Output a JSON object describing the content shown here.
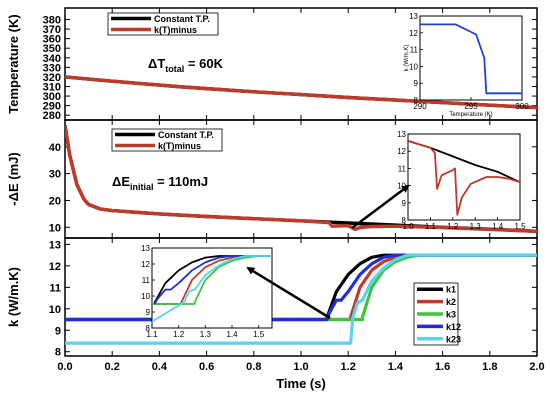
{
  "chart_data": {
    "type": "line",
    "shared_x": {
      "label": "Time (s)",
      "lim": [
        0.0,
        2.0
      ],
      "ticks": [
        0.0,
        0.2,
        0.4,
        0.6,
        0.8,
        1.0,
        1.2,
        1.4,
        1.6,
        1.8,
        2.0
      ],
      "tick_labels": [
        "0.0",
        "0.2",
        "0.4",
        "0.6",
        "0.8",
        "1.0",
        "1.2",
        "1.4",
        "1.6",
        "1.8",
        "2.0"
      ]
    },
    "panels": [
      {
        "id": "temperature",
        "ylabel": "Temperature (K)",
        "ylim": [
          275,
          392
        ],
        "yticks": [
          280,
          290,
          300,
          310,
          320,
          330,
          340,
          350,
          360,
          370,
          380
        ],
        "legend": [
          "Constant T.P.",
          "k(T)minus"
        ],
        "legend_placement": "top-left",
        "annotation_main": "ΔT",
        "annotation_sub": "total",
        "annotation_tail": " = 60K",
        "series": [
          {
            "name": "Constant T.P.",
            "color": "#000000",
            "x": [
              0,
              0.2,
              0.5,
              0.8,
              1.0,
              1.2,
              1.5,
              1.8,
              2.0
            ],
            "y": [
              320,
              315.5,
              309.5,
              304.5,
              301.5,
              298.5,
              294.5,
              290.5,
              288
            ]
          },
          {
            "name": "k(T)minus",
            "color": "#c0392b",
            "x": [
              0,
              0.2,
              0.5,
              0.8,
              1.0,
              1.2,
              1.5,
              1.8,
              2.0
            ],
            "y": [
              320,
              315.5,
              309.5,
              304.5,
              301.5,
              298.5,
              294.5,
              290.5,
              288
            ]
          }
        ],
        "inset": {
          "xlabel": "Temperature (K)",
          "ylabel": "k (W/m.K)",
          "xlim": [
            290,
            300
          ],
          "ylim": [
            8,
            13
          ],
          "xticks": [
            290,
            295,
            300
          ],
          "yticks": [
            8,
            9,
            10,
            11,
            12,
            13
          ],
          "series": [
            {
              "name": "",
              "color": "#1f3fd8",
              "x": [
                290,
                293.5,
                295.5,
                296.3,
                296.5,
                297,
                300
              ],
              "y": [
                12.5,
                12.5,
                11.9,
                10.5,
                8.4,
                8.4,
                8.4
              ]
            }
          ]
        }
      },
      {
        "id": "energy",
        "ylabel": "-ΔE (mJ)",
        "ylim": [
          6,
          50
        ],
        "yticks": [
          10,
          20,
          30,
          40
        ],
        "legend": [
          "Constant T.P.",
          "k(T)minus"
        ],
        "legend_placement": "top-center",
        "annotation_main": "ΔE",
        "annotation_sub": "initial",
        "annotation_tail": " = 110mJ",
        "series": [
          {
            "name": "Constant T.P.",
            "color": "#000000",
            "x": [
              0.0,
              0.02,
              0.05,
              0.08,
              0.1,
              0.15,
              0.2,
              0.4,
              0.6,
              0.8,
              1.0,
              1.2,
              1.4,
              1.6,
              1.8,
              2.0
            ],
            "y": [
              48,
              37,
              26,
              20.5,
              18.5,
              16.8,
              16.2,
              15,
              14,
              13.2,
              12.4,
              11.6,
              10.8,
              10,
              9.3,
              8.5
            ]
          },
          {
            "name": "k(T)minus",
            "color": "#c0392b",
            "x": [
              0.0,
              0.02,
              0.05,
              0.08,
              0.1,
              0.15,
              0.2,
              0.4,
              0.6,
              0.8,
              1.0,
              1.12,
              1.13,
              1.2,
              1.23,
              1.25,
              1.3,
              1.4,
              1.6,
              1.8,
              2.0
            ],
            "y": [
              48,
              37,
              26,
              20.5,
              18.5,
              16.8,
              16.2,
              15,
              14,
              13.2,
              12.4,
              11.7,
              10.4,
              10.6,
              9.2,
              9.9,
              10.3,
              10.4,
              9.9,
              9.2,
              8.5
            ]
          }
        ],
        "inset": {
          "xlabel": "",
          "ylabel": "",
          "xlim": [
            1.0,
            1.5
          ],
          "ylim": [
            8,
            13
          ],
          "xticks": [
            1.0,
            1.1,
            1.2,
            1.3,
            1.4,
            1.5
          ],
          "yticks": [
            8,
            9,
            10,
            11,
            12,
            13
          ],
          "series": [
            {
              "name": "Constant T.P.",
              "color": "#000000",
              "x": [
                1.0,
                1.1,
                1.2,
                1.3,
                1.4,
                1.5
              ],
              "y": [
                12.6,
                12.2,
                11.7,
                11.2,
                10.8,
                10.2
              ]
            },
            {
              "name": "k(T)minus",
              "color": "#c0392b",
              "x": [
                1.0,
                1.05,
                1.1,
                1.12,
                1.13,
                1.15,
                1.2,
                1.21,
                1.22,
                1.24,
                1.28,
                1.35,
                1.4,
                1.45,
                1.5
              ],
              "y": [
                12.6,
                12.4,
                12.2,
                11.9,
                9.8,
                10.6,
                10.9,
                11.0,
                8.3,
                9.3,
                10.1,
                10.5,
                10.5,
                10.4,
                10.2
              ]
            }
          ]
        }
      },
      {
        "id": "conductivity",
        "ylabel": "k (W/m.K)",
        "ylim": [
          7.8,
          13.3
        ],
        "yticks": [
          8,
          9,
          10,
          11,
          12,
          13
        ],
        "legend": [
          "k1",
          "k2",
          "k3",
          "k12",
          "k23"
        ],
        "legend_placement": "bottom-right",
        "series": [
          {
            "name": "k1",
            "color": "#000000",
            "x": [
              0,
              1.11,
              1.11,
              1.15,
              1.2,
              1.25,
              1.3,
              1.35,
              1.4,
              2.0
            ],
            "y": [
              9.5,
              9.5,
              9.6,
              10.8,
              11.6,
              12.1,
              12.4,
              12.5,
              12.5,
              12.5
            ]
          },
          {
            "name": "k2",
            "color": "#c0392b",
            "x": [
              0,
              1.21,
              1.21,
              1.25,
              1.3,
              1.35,
              1.4,
              1.45,
              2.0
            ],
            "y": [
              9.5,
              9.5,
              9.6,
              11.0,
              11.8,
              12.2,
              12.4,
              12.5,
              12.5
            ]
          },
          {
            "name": "k3",
            "color": "#3ec43e",
            "x": [
              0,
              1.26,
              1.26,
              1.3,
              1.35,
              1.4,
              1.45,
              1.5,
              2.0
            ],
            "y": [
              9.5,
              9.5,
              9.6,
              11.0,
              11.8,
              12.2,
              12.4,
              12.5,
              12.5
            ]
          },
          {
            "name": "k12",
            "color": "#1f2fd8",
            "x": [
              0,
              1.11,
              1.12,
              1.14,
              1.15,
              1.17,
              1.2,
              1.25,
              1.3,
              1.35,
              1.4,
              2.0
            ],
            "y": [
              9.5,
              9.5,
              9.8,
              10.2,
              10.4,
              10.4,
              10.8,
              11.6,
              12.1,
              12.4,
              12.5,
              12.5
            ]
          },
          {
            "name": "k23",
            "color": "#5ad4ec",
            "x": [
              0,
              1.21,
              1.22,
              1.24,
              1.26,
              1.3,
              1.35,
              1.4,
              1.45,
              2.0
            ],
            "y": [
              8.4,
              8.4,
              9.6,
              10.3,
              10.4,
              11.3,
              11.9,
              12.3,
              12.5,
              12.5
            ]
          }
        ],
        "inset": {
          "xlabel": "",
          "ylabel": "",
          "xlim": [
            1.1,
            1.55
          ],
          "ylim": [
            8,
            13
          ],
          "xticks": [
            1.1,
            1.2,
            1.3,
            1.4,
            1.5
          ],
          "yticks": [
            8,
            9,
            10,
            11,
            12,
            13
          ],
          "series": [
            {
              "name": "k1",
              "color": "#000000",
              "x": [
                1.11,
                1.11,
                1.15,
                1.2,
                1.25,
                1.3,
                1.35,
                1.4,
                1.55
              ],
              "y": [
                9.5,
                9.6,
                10.8,
                11.6,
                12.1,
                12.4,
                12.5,
                12.5,
                12.5
              ]
            },
            {
              "name": "k2",
              "color": "#c0392b",
              "x": [
                1.1,
                1.21,
                1.21,
                1.25,
                1.3,
                1.35,
                1.4,
                1.45,
                1.55
              ],
              "y": [
                9.5,
                9.5,
                9.6,
                11.0,
                11.8,
                12.2,
                12.4,
                12.5,
                12.5
              ]
            },
            {
              "name": "k3",
              "color": "#3ec43e",
              "x": [
                1.1,
                1.26,
                1.26,
                1.3,
                1.35,
                1.4,
                1.45,
                1.5,
                1.55
              ],
              "y": [
                9.5,
                9.5,
                9.6,
                11.0,
                11.8,
                12.2,
                12.4,
                12.5,
                12.5
              ]
            },
            {
              "name": "k12",
              "color": "#1f2fd8",
              "x": [
                1.11,
                1.12,
                1.14,
                1.15,
                1.17,
                1.2,
                1.25,
                1.3,
                1.35,
                1.4,
                1.55
              ],
              "y": [
                9.5,
                9.8,
                10.2,
                10.4,
                10.4,
                10.8,
                11.6,
                12.1,
                12.4,
                12.5,
                12.5
              ]
            },
            {
              "name": "k23",
              "color": "#5ad4ec",
              "x": [
                1.1,
                1.22,
                1.24,
                1.26,
                1.3,
                1.35,
                1.4,
                1.45,
                1.55
              ],
              "y": [
                8.4,
                9.6,
                10.3,
                10.4,
                11.3,
                11.9,
                12.3,
                12.5,
                12.5
              ]
            }
          ]
        }
      }
    ]
  }
}
